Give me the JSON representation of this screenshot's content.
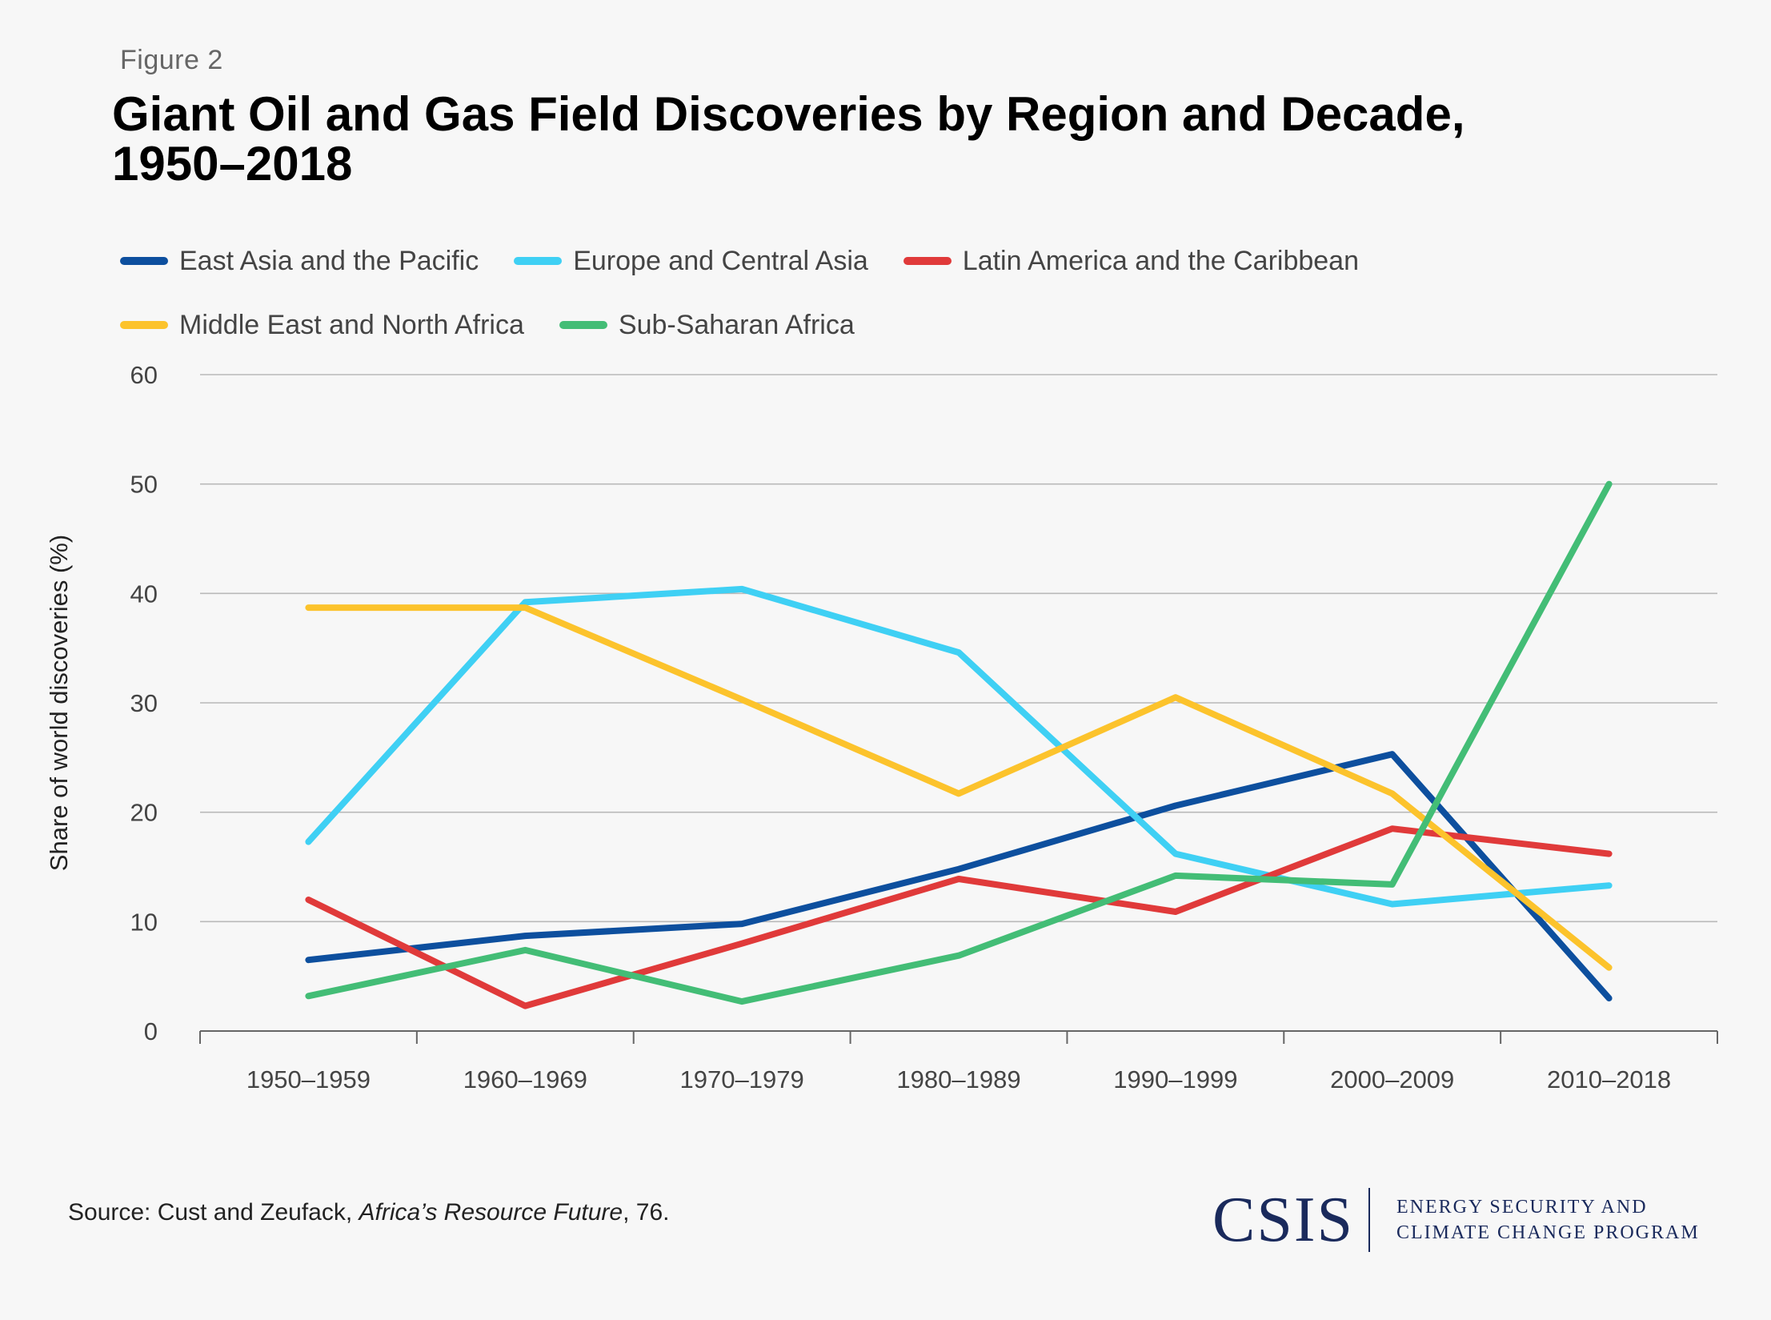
{
  "figure_label": "Figure 2",
  "title": "Giant Oil and Gas Field Discoveries by Region and Decade, 1950–2018",
  "source": {
    "prefix": "Source: Cust and Zeufack, ",
    "italic": "Africa’s Resource Future",
    "suffix": ", 76."
  },
  "logo": {
    "name": "CSIS",
    "program_line1": "ENERGY SECURITY AND",
    "program_line2": "CLIMATE CHANGE PROGRAM"
  },
  "chart_data": {
    "type": "line",
    "title": "Giant Oil and Gas Field Discoveries by Region and Decade, 1950–2018",
    "xlabel": "",
    "ylabel": "Share of world discoveries (%)",
    "ylim": [
      0,
      60
    ],
    "yticks": [
      0,
      10,
      20,
      30,
      40,
      50,
      60
    ],
    "grid": true,
    "legend_position": "top",
    "categories": [
      "1950–1959",
      "1960–1969",
      "1970–1979",
      "1980–1989",
      "1990–1999",
      "2000–2009",
      "2010–2018"
    ],
    "series": [
      {
        "name": "East Asia and the Pacific",
        "color": "#0d4f9e",
        "values": [
          6.5,
          8.7,
          9.8,
          14.8,
          20.6,
          25.3,
          3.0
        ]
      },
      {
        "name": "Europe and Central Asia",
        "color": "#3fd0f4",
        "values": [
          17.3,
          39.2,
          40.4,
          34.6,
          16.2,
          11.6,
          13.3
        ]
      },
      {
        "name": "Latin America and the Caribbean",
        "color": "#e03a3a",
        "values": [
          12.0,
          2.3,
          8.0,
          13.9,
          10.9,
          18.5,
          16.2
        ]
      },
      {
        "name": "Middle East and North Africa",
        "color": "#fcc32c",
        "values": [
          38.7,
          38.7,
          30.3,
          21.7,
          30.5,
          21.7,
          5.8
        ]
      },
      {
        "name": "Sub-Saharan Africa",
        "color": "#43bd76",
        "values": [
          3.2,
          7.4,
          2.7,
          6.9,
          14.2,
          13.4,
          50.0
        ]
      }
    ]
  }
}
